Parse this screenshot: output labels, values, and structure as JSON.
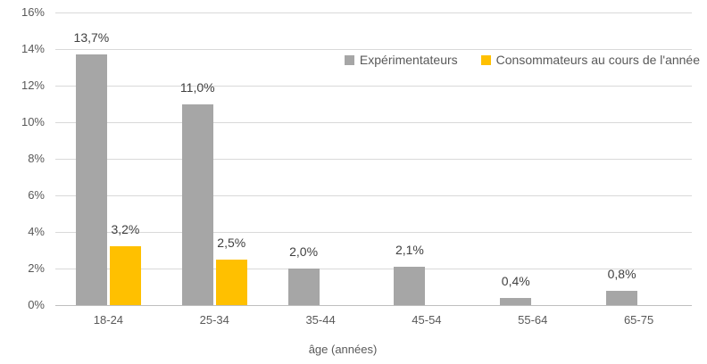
{
  "chart_data": {
    "type": "bar",
    "title": "",
    "categories": [
      "18-24",
      "25-34",
      "35-44",
      "45-54",
      "55-64",
      "65-75"
    ],
    "series": [
      {
        "name": "Expérimentateurs",
        "color": "#A6A6A6",
        "values": [
          13.7,
          11.0,
          2.0,
          2.1,
          0.4,
          0.8
        ],
        "labels": [
          "13,7%",
          "11,0%",
          "2,0%",
          "2,1%",
          "0,4%",
          "0,8%"
        ]
      },
      {
        "name": "Consommateurs au cours de l'année",
        "color": "#FFC000",
        "values": [
          3.2,
          2.5,
          null,
          null,
          null,
          null
        ],
        "labels": [
          "3,2%",
          "2,5%",
          "",
          "",
          "",
          ""
        ]
      }
    ],
    "xlabel": "âge (années)",
    "ylabel": "",
    "ylim": [
      0,
      16
    ],
    "ytick_step": 2,
    "ytick_labels": [
      "0%",
      "2%",
      "4%",
      "6%",
      "8%",
      "10%",
      "12%",
      "14%",
      "16%"
    ],
    "grid": true,
    "legend_position": "top-right",
    "colors": {
      "grid_line": "#D9D9D9",
      "axis_line": "#BFBFBF",
      "tick_text": "#595959",
      "data_label_text": "#404040",
      "legend_text": "#595959",
      "background": "#FFFFFF"
    }
  }
}
